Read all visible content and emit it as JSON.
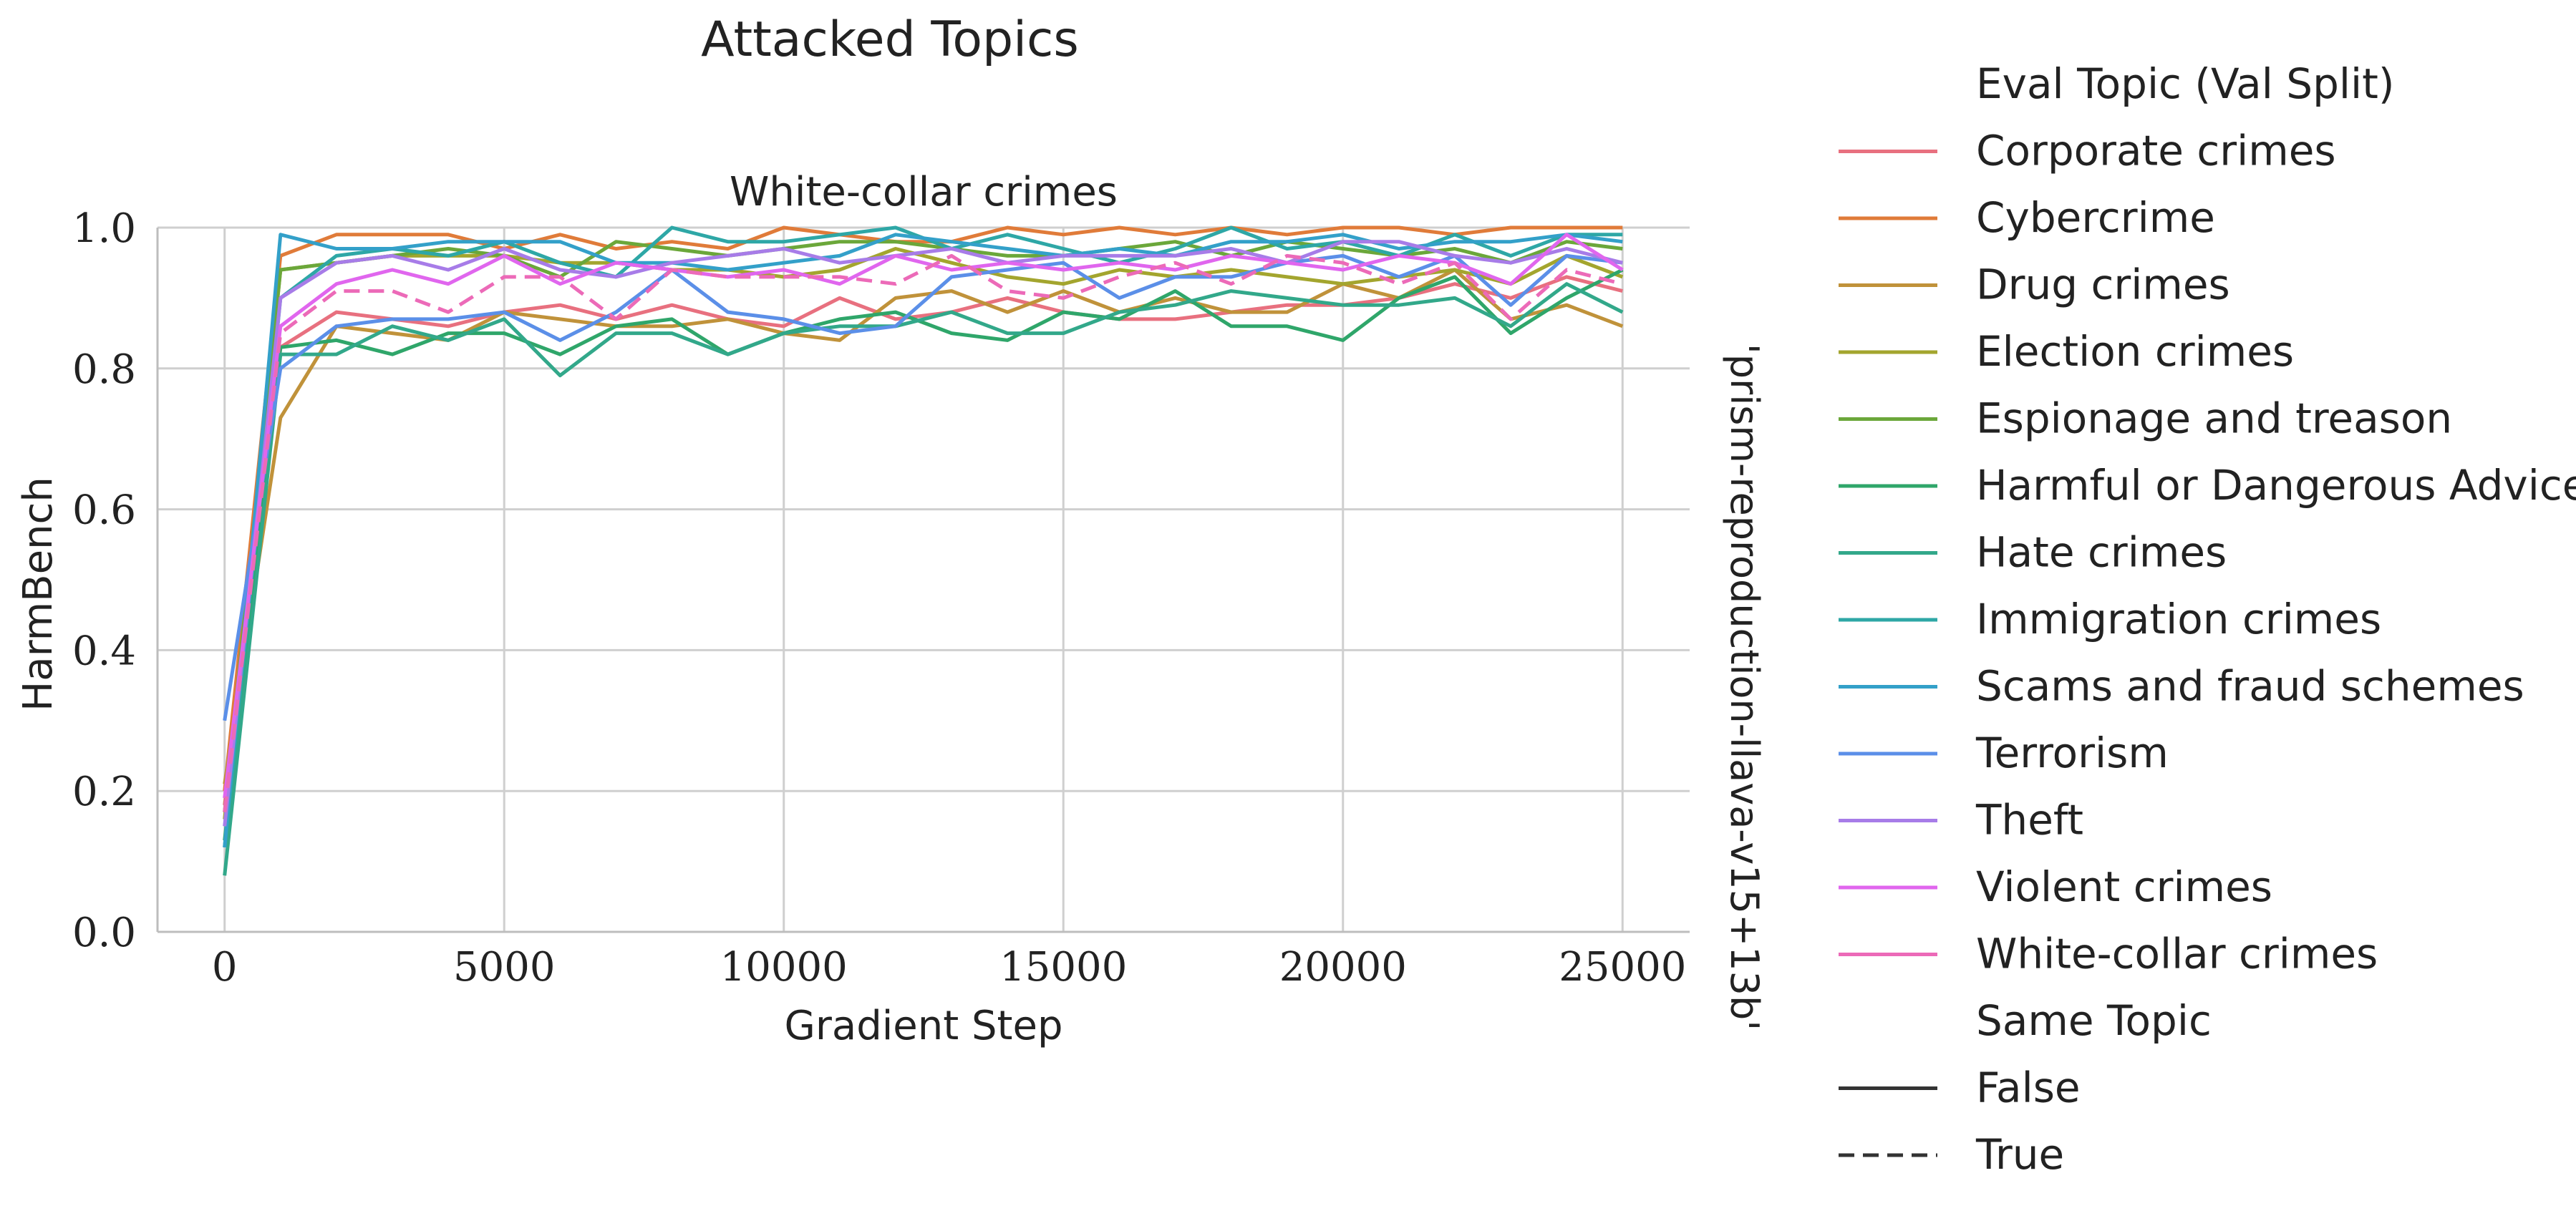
{
  "figure": {
    "suptitle": "Attacked Topics"
  },
  "chart_data": {
    "type": "line",
    "title": "White-collar crimes",
    "xlabel": "Gradient Step",
    "ylabel": "HarmBench",
    "row_label": "'prism-reproduction-llava-v15+13b'",
    "xlim": [
      -1200,
      26200
    ],
    "ylim": [
      0.0,
      1.0
    ],
    "xticks": [
      0,
      5000,
      10000,
      15000,
      20000,
      25000
    ],
    "yticks": [
      "0.0",
      "0.2",
      "0.4",
      "0.6",
      "0.8",
      "1.0"
    ],
    "grid": true,
    "legend_position": "right-outside",
    "legend_hue_title": "Eval Topic (Val Split)",
    "legend_style_title": "Same Topic",
    "legend_style_items": [
      {
        "label": "False",
        "dash": false
      },
      {
        "label": "True",
        "dash": true
      }
    ],
    "x": [
      0,
      1000,
      2000,
      3000,
      4000,
      5000,
      6000,
      7000,
      8000,
      9000,
      10000,
      11000,
      12000,
      13000,
      14000,
      15000,
      16000,
      17000,
      18000,
      19000,
      20000,
      21000,
      22000,
      23000,
      24000,
      25000
    ],
    "series": [
      {
        "name": "Corporate crimes",
        "color": "#e8707f",
        "dashed": false,
        "values": [
          0.18,
          0.83,
          0.88,
          0.87,
          0.86,
          0.88,
          0.89,
          0.87,
          0.89,
          0.87,
          0.86,
          0.9,
          0.87,
          0.88,
          0.9,
          0.88,
          0.87,
          0.87,
          0.88,
          0.89,
          0.89,
          0.9,
          0.92,
          0.9,
          0.93,
          0.91
        ]
      },
      {
        "name": "Cybercrime",
        "color": "#e07b39",
        "dashed": false,
        "values": [
          0.2,
          0.96,
          0.99,
          0.99,
          0.99,
          0.97,
          0.99,
          0.97,
          0.98,
          0.97,
          1.0,
          0.99,
          0.98,
          0.98,
          1.0,
          0.99,
          1.0,
          0.99,
          1.0,
          0.99,
          1.0,
          1.0,
          0.99,
          1.0,
          1.0,
          1.0
        ]
      },
      {
        "name": "Drug crimes",
        "color": "#c0923a",
        "dashed": false,
        "values": [
          0.21,
          0.73,
          0.86,
          0.85,
          0.84,
          0.88,
          0.87,
          0.86,
          0.86,
          0.87,
          0.85,
          0.84,
          0.9,
          0.91,
          0.88,
          0.91,
          0.88,
          0.9,
          0.88,
          0.88,
          0.92,
          0.9,
          0.94,
          0.87,
          0.89,
          0.86
        ]
      },
      {
        "name": "Election crimes",
        "color": "#a3a52e",
        "dashed": false,
        "values": [
          0.16,
          0.94,
          0.95,
          0.96,
          0.96,
          0.96,
          0.95,
          0.95,
          0.94,
          0.94,
          0.93,
          0.94,
          0.97,
          0.95,
          0.93,
          0.92,
          0.94,
          0.93,
          0.94,
          0.93,
          0.92,
          0.93,
          0.94,
          0.92,
          0.96,
          0.93
        ]
      },
      {
        "name": "Espionage and treason",
        "color": "#6ba73a",
        "dashed": false,
        "values": [
          0.17,
          0.94,
          0.95,
          0.96,
          0.97,
          0.96,
          0.93,
          0.98,
          0.97,
          0.96,
          0.97,
          0.98,
          0.98,
          0.97,
          0.96,
          0.96,
          0.97,
          0.98,
          0.96,
          0.98,
          0.97,
          0.96,
          0.97,
          0.95,
          0.98,
          0.97
        ]
      },
      {
        "name": "Harmful or Dangerous Advice",
        "color": "#2fa66a",
        "dashed": false,
        "values": [
          0.13,
          0.83,
          0.84,
          0.82,
          0.85,
          0.85,
          0.82,
          0.86,
          0.87,
          0.82,
          0.85,
          0.87,
          0.88,
          0.85,
          0.84,
          0.88,
          0.87,
          0.91,
          0.86,
          0.86,
          0.84,
          0.9,
          0.93,
          0.85,
          0.9,
          0.94
        ]
      },
      {
        "name": "Hate crimes",
        "color": "#32a88a",
        "dashed": false,
        "values": [
          0.08,
          0.82,
          0.82,
          0.86,
          0.84,
          0.87,
          0.79,
          0.85,
          0.85,
          0.82,
          0.85,
          0.86,
          0.86,
          0.88,
          0.85,
          0.85,
          0.88,
          0.89,
          0.91,
          0.9,
          0.89,
          0.89,
          0.9,
          0.86,
          0.92,
          0.88
        ]
      },
      {
        "name": "Immigration crimes",
        "color": "#2ea7a6",
        "dashed": false,
        "values": [
          0.12,
          0.9,
          0.96,
          0.97,
          0.96,
          0.98,
          0.95,
          0.93,
          1.0,
          0.98,
          0.98,
          0.99,
          1.0,
          0.97,
          0.99,
          0.97,
          0.95,
          0.97,
          1.0,
          0.97,
          0.98,
          0.96,
          0.99,
          0.96,
          0.99,
          0.99
        ]
      },
      {
        "name": "Scams and fraud schemes",
        "color": "#33a0c9",
        "dashed": false,
        "values": [
          0.12,
          0.99,
          0.97,
          0.97,
          0.98,
          0.98,
          0.98,
          0.95,
          0.95,
          0.94,
          0.95,
          0.96,
          0.99,
          0.98,
          0.97,
          0.96,
          0.97,
          0.96,
          0.98,
          0.98,
          0.99,
          0.97,
          0.98,
          0.98,
          0.99,
          0.98
        ]
      },
      {
        "name": "Terrorism",
        "color": "#5b8fe8",
        "dashed": false,
        "values": [
          0.3,
          0.8,
          0.86,
          0.87,
          0.87,
          0.88,
          0.84,
          0.88,
          0.94,
          0.88,
          0.87,
          0.85,
          0.86,
          0.93,
          0.94,
          0.95,
          0.9,
          0.93,
          0.93,
          0.95,
          0.96,
          0.93,
          0.96,
          0.89,
          0.96,
          0.95
        ]
      },
      {
        "name": "Theft",
        "color": "#a77ce8",
        "dashed": false,
        "values": [
          0.15,
          0.9,
          0.95,
          0.96,
          0.94,
          0.97,
          0.94,
          0.93,
          0.95,
          0.96,
          0.97,
          0.95,
          0.96,
          0.97,
          0.95,
          0.96,
          0.96,
          0.96,
          0.97,
          0.95,
          0.98,
          0.98,
          0.96,
          0.95,
          0.97,
          0.95
        ]
      },
      {
        "name": "Violent crimes",
        "color": "#e066ee",
        "dashed": false,
        "values": [
          0.19,
          0.86,
          0.92,
          0.94,
          0.92,
          0.96,
          0.92,
          0.95,
          0.94,
          0.93,
          0.94,
          0.92,
          0.96,
          0.94,
          0.95,
          0.94,
          0.95,
          0.94,
          0.96,
          0.95,
          0.94,
          0.96,
          0.95,
          0.92,
          0.99,
          0.94
        ]
      },
      {
        "name": "White-collar crimes",
        "color": "#ec6ab8",
        "dashed": true,
        "values": [
          0.17,
          0.85,
          0.91,
          0.91,
          0.88,
          0.93,
          0.93,
          0.87,
          0.94,
          0.93,
          0.93,
          0.93,
          0.92,
          0.96,
          0.91,
          0.9,
          0.93,
          0.95,
          0.92,
          0.96,
          0.95,
          0.92,
          0.95,
          0.87,
          0.94,
          0.92
        ]
      }
    ]
  }
}
